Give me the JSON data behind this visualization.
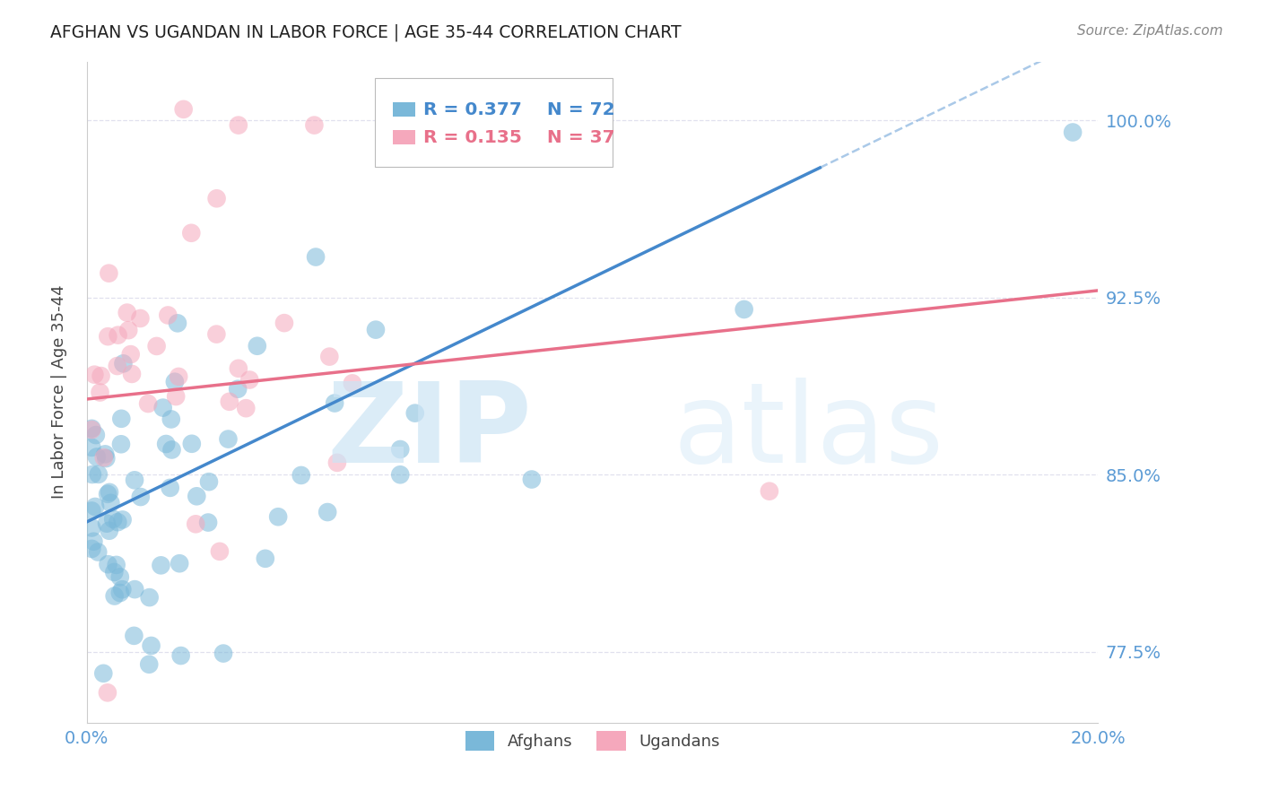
{
  "title": "AFGHAN VS UGANDAN IN LABOR FORCE | AGE 35-44 CORRELATION CHART",
  "source": "Source: ZipAtlas.com",
  "ylabel": "In Labor Force | Age 35-44",
  "xlim": [
    0.0,
    0.2
  ],
  "ylim": [
    0.745,
    1.025
  ],
  "yticks": [
    0.775,
    0.85,
    0.925,
    1.0
  ],
  "ytick_labels": [
    "77.5%",
    "85.0%",
    "92.5%",
    "100.0%"
  ],
  "xtick_labels": [
    "0.0%",
    "",
    "",
    "",
    "20.0%"
  ],
  "xticks": [
    0.0,
    0.05,
    0.1,
    0.15,
    0.2
  ],
  "legend_blue_r": "R = 0.377",
  "legend_blue_n": "N = 72",
  "legend_pink_r": "R = 0.135",
  "legend_pink_n": "N = 37",
  "blue_color": "#7ab8d9",
  "pink_color": "#f5a8bc",
  "blue_line_color": "#4488cc",
  "pink_line_color": "#e8708a",
  "tick_color": "#5b9bd5",
  "grid_color": "#e0e0ee",
  "background_color": "#ffffff",
  "blue_r": 0.377,
  "blue_n": 72,
  "pink_r": 0.135,
  "pink_n": 37,
  "blue_line_x0": 0.0,
  "blue_line_y0": 0.83,
  "blue_line_x1": 0.145,
  "blue_line_y1": 0.98,
  "pink_line_x0": 0.0,
  "pink_line_y0": 0.882,
  "pink_line_x1": 0.2,
  "pink_line_y1": 0.928
}
